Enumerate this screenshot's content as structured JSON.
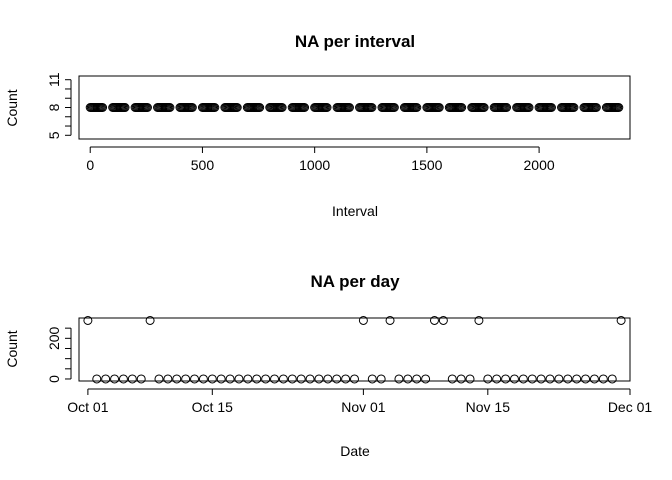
{
  "chart_data": [
    {
      "type": "scatter",
      "title": "NA per interval",
      "xlabel": "Interval",
      "ylabel": "Count",
      "xlim": [
        -50,
        2405
      ],
      "ylim": [
        4.6,
        11.4
      ],
      "xticks": [
        0,
        500,
        1000,
        1500,
        2000
      ],
      "xtick_labels": [
        "0",
        "500",
        "1000",
        "1500",
        "2000"
      ],
      "yticks": [
        5,
        8,
        11
      ],
      "ytick_labels": [
        "5",
        "8",
        "11"
      ],
      "y_minor_ticks": [
        6,
        7,
        9,
        10
      ],
      "grid": false,
      "legend": "none",
      "point_shape": "open-circle",
      "series": [
        {
          "x_start": 0,
          "x_end": 2355,
          "x_pattern": "hour*100 + minute, minute in 0..55 step 5, hour 0..23",
          "y": 8
        }
      ]
    },
    {
      "type": "scatter",
      "title": "NA per day",
      "xlabel": "Date",
      "ylabel": "Count",
      "xlim": [
        "2012-09-30",
        "2012-12-01"
      ],
      "ylim": [
        -10,
        300
      ],
      "xticks": [
        "2012-10-01",
        "2012-10-15",
        "2012-11-01",
        "2012-11-15",
        "2012-12-01"
      ],
      "xtick_labels": [
        "Oct 01",
        "Oct 15",
        "Nov 01",
        "Nov 15",
        "Dec 01"
      ],
      "yticks": [
        0,
        200
      ],
      "ytick_labels": [
        "0",
        "200"
      ],
      "y_minor_ticks": [
        50,
        100,
        150,
        250
      ],
      "grid": false,
      "legend": "none",
      "point_shape": "open-circle",
      "series": [
        {
          "x": [
            "2012-10-01",
            "2012-10-02",
            "2012-10-03",
            "2012-10-04",
            "2012-10-05",
            "2012-10-06",
            "2012-10-07",
            "2012-10-08",
            "2012-10-09",
            "2012-10-10",
            "2012-10-11",
            "2012-10-12",
            "2012-10-13",
            "2012-10-14",
            "2012-10-15",
            "2012-10-16",
            "2012-10-17",
            "2012-10-18",
            "2012-10-19",
            "2012-10-20",
            "2012-10-21",
            "2012-10-22",
            "2012-10-23",
            "2012-10-24",
            "2012-10-25",
            "2012-10-26",
            "2012-10-27",
            "2012-10-28",
            "2012-10-29",
            "2012-10-30",
            "2012-10-31",
            "2012-11-01",
            "2012-11-02",
            "2012-11-03",
            "2012-11-04",
            "2012-11-05",
            "2012-11-06",
            "2012-11-07",
            "2012-11-08",
            "2012-11-09",
            "2012-11-10",
            "2012-11-11",
            "2012-11-12",
            "2012-11-13",
            "2012-11-14",
            "2012-11-15",
            "2012-11-16",
            "2012-11-17",
            "2012-11-18",
            "2012-11-19",
            "2012-11-20",
            "2012-11-21",
            "2012-11-22",
            "2012-11-23",
            "2012-11-24",
            "2012-11-25",
            "2012-11-26",
            "2012-11-27",
            "2012-11-28",
            "2012-11-29",
            "2012-11-30"
          ],
          "y": [
            288,
            0,
            0,
            0,
            0,
            0,
            0,
            288,
            0,
            0,
            0,
            0,
            0,
            0,
            0,
            0,
            0,
            0,
            0,
            0,
            0,
            0,
            0,
            0,
            0,
            0,
            0,
            0,
            0,
            0,
            0,
            288,
            0,
            0,
            288,
            0,
            0,
            0,
            0,
            288,
            288,
            0,
            0,
            0,
            288,
            0,
            0,
            0,
            0,
            0,
            0,
            0,
            0,
            0,
            0,
            0,
            0,
            0,
            0,
            0,
            288
          ]
        }
      ]
    }
  ]
}
